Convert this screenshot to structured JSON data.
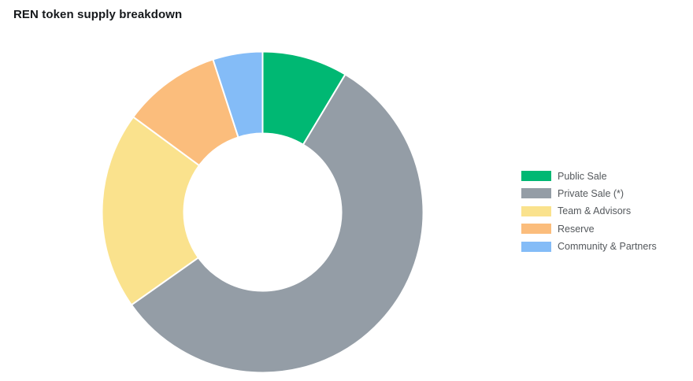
{
  "title": "REN token supply breakdown",
  "chart_data": {
    "type": "pie",
    "subtype": "donut",
    "title": "REN token supply breakdown",
    "categories": [
      "Public Sale",
      "Private Sale (*)",
      "Team & Advisors",
      "Reserve",
      "Community & Partners"
    ],
    "values": [
      8.6,
      56.6,
      19.9,
      9.9,
      5.0
    ],
    "unit": "%",
    "colors": [
      "#00b873",
      "#949da6",
      "#fae28d",
      "#fbbd7c",
      "#84bcf7"
    ],
    "start_angle_deg": 0,
    "direction": "clockwise",
    "inner_radius_ratio": 0.49,
    "legend_position": "right",
    "background_color": "#ffffff",
    "slice_border_color": "#ffffff"
  }
}
